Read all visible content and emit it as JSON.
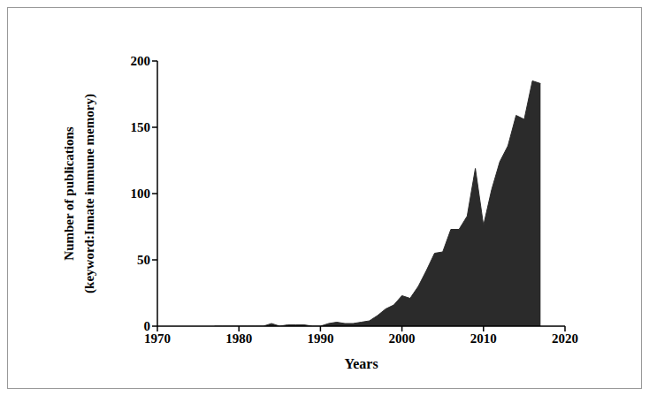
{
  "chart_data": {
    "type": "area",
    "x_label": "Years",
    "y_label": "Number of publications\n(keyword:Innate immune memory)",
    "x": [
      1977,
      1978,
      1979,
      1980,
      1981,
      1982,
      1983,
      1984,
      1985,
      1986,
      1987,
      1988,
      1989,
      1990,
      1991,
      1992,
      1993,
      1994,
      1995,
      1996,
      1997,
      1998,
      1999,
      2000,
      2001,
      2002,
      2003,
      2004,
      2005,
      2006,
      2007,
      2008,
      2009,
      2010,
      2011,
      2012,
      2013,
      2014,
      2015,
      2016,
      2017
    ],
    "values": [
      0,
      0,
      0,
      0,
      0,
      0,
      0,
      2,
      0,
      1,
      1,
      1,
      0,
      0,
      2,
      3,
      2,
      2,
      3,
      4,
      8,
      13,
      16,
      23,
      21,
      30,
      42,
      55,
      56,
      73,
      73,
      83,
      119,
      76,
      103,
      124,
      136,
      159,
      156,
      185,
      183
    ],
    "color": "#2b2b2b",
    "xlim": [
      1970,
      2020
    ],
    "ylim": [
      0,
      200
    ],
    "xticks": [
      1970,
      1980,
      1990,
      2000,
      2010,
      2020
    ],
    "yticks": [
      0,
      50,
      100,
      150,
      200
    ],
    "grid": false
  }
}
